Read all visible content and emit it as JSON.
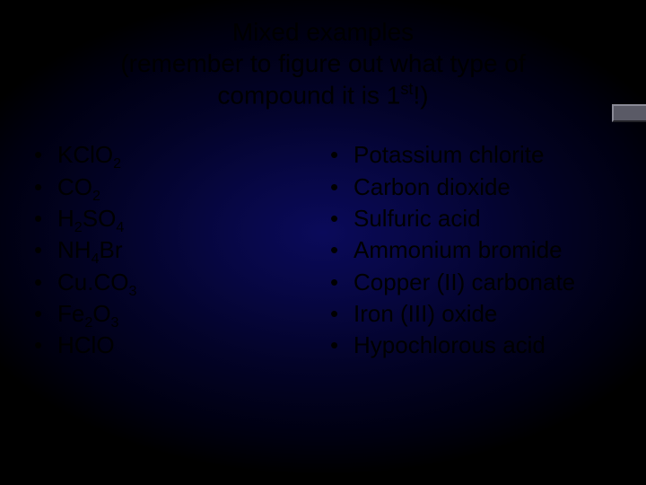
{
  "background": {
    "gradient_center": "#0a0a5a",
    "gradient_mid": "#030328",
    "gradient_edge": "#000000"
  },
  "title": {
    "line1": "Mixed examples",
    "line2": "(remember to figure out what type of",
    "line3_pre": "compound it is 1",
    "line3_sup": "st",
    "line3_post": "!)",
    "fontsize": 28,
    "color": "#000000"
  },
  "left_column": {
    "items": [
      {
        "raw": "KClO2",
        "html": "KClO<sub>2</sub>"
      },
      {
        "raw": "CO2",
        "html": "CO<sub>2</sub>"
      },
      {
        "raw": "H2SO4",
        "html": "H<sub>2</sub>SO<sub>4</sub>"
      },
      {
        "raw": "NH4Br",
        "html": "NH<sub>4</sub>Br"
      },
      {
        "raw": "Cu.CO3",
        "html": "Cu.CO<sub>3</sub>"
      },
      {
        "raw": "Fe2O3",
        "html": "Fe<sub>2</sub>O<sub>3</sub>"
      },
      {
        "raw": "HClO",
        "html": "HClO"
      }
    ]
  },
  "right_column": {
    "items": [
      "Potassium chlorite",
      "Carbon dioxide",
      "Sulfuric acid",
      "Ammonium bromide",
      "Copper (II) carbonate",
      "Iron (III) oxide",
      "Hypochlorous acid"
    ]
  },
  "bullet": "•",
  "text_style": {
    "fontsize": 26,
    "color": "#000000",
    "line_height": 1.36
  },
  "corner_stub": {
    "fill": "#5a5a66",
    "highlight": "#8a8a96",
    "shadow": "#222228"
  }
}
